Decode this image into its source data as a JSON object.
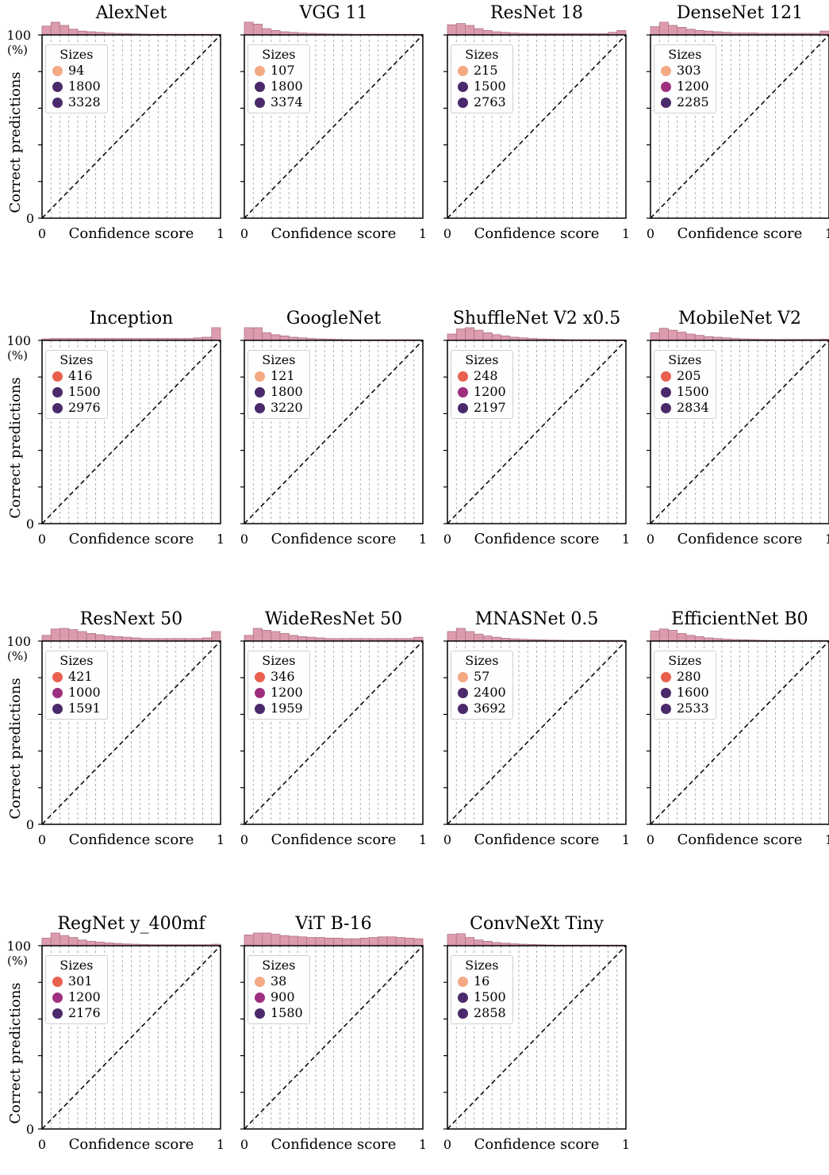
{
  "figure": {
    "shared_xlabel": "Confidence score",
    "shared_ylabel": "Correct predictions",
    "y_top_label": "100",
    "y_unit_label": "(%)",
    "y_zero_label": "0",
    "x_tick_left": "0",
    "x_tick_right": "1",
    "legend_title": "Sizes",
    "colors": {
      "light": "#f3a983",
      "medium": "#e9604f",
      "magenta": "#9e2f7f",
      "dark": "#4a2a6a",
      "errorbar": "#d62a4e",
      "histogram": "#dc9cae",
      "line": "#000000"
    }
  },
  "chart_data": [
    {
      "type": "line",
      "title": "AlexNet",
      "legend": [
        {
          "label": "94",
          "color": "#f3a983"
        },
        {
          "label": "1800",
          "color": "#4a2a6a"
        },
        {
          "label": "3328",
          "color": "#4a2a6a"
        }
      ],
      "xlim": [
        0,
        1
      ],
      "ylim": [
        0,
        100
      ],
      "xlabel": "Confidence score",
      "ylabel": "Correct predictions",
      "histogram": [
        0.7,
        1.0,
        0.75,
        0.45,
        0.3,
        0.25,
        0.2,
        0.15,
        0.12,
        0.1,
        0.08,
        0.06,
        0.05,
        0.05,
        0.05,
        0.05,
        0.05,
        0.05,
        0.05,
        0.05
      ]
    },
    {
      "type": "line",
      "title": "VGG 11",
      "legend": [
        {
          "label": "107",
          "color": "#f3a983"
        },
        {
          "label": "1800",
          "color": "#4a2a6a"
        },
        {
          "label": "3374",
          "color": "#4a2a6a"
        }
      ],
      "xlim": [
        0,
        1
      ],
      "ylim": [
        0,
        100
      ],
      "xlabel": "Confidence score",
      "ylabel": "Correct predictions",
      "histogram": [
        1.0,
        0.85,
        0.5,
        0.35,
        0.25,
        0.2,
        0.15,
        0.12,
        0.1,
        0.08,
        0.07,
        0.06,
        0.05,
        0.05,
        0.05,
        0.05,
        0.05,
        0.05,
        0.05,
        0.05
      ]
    },
    {
      "type": "line",
      "title": "ResNet 18",
      "legend": [
        {
          "label": "215",
          "color": "#f3a983"
        },
        {
          "label": "1500",
          "color": "#4a2a6a"
        },
        {
          "label": "2763",
          "color": "#4a2a6a"
        }
      ],
      "xlim": [
        0,
        1
      ],
      "ylim": [
        0,
        100
      ],
      "xlabel": "Confidence score",
      "ylabel": "Correct predictions",
      "histogram": [
        0.8,
        0.9,
        0.75,
        0.5,
        0.35,
        0.25,
        0.2,
        0.15,
        0.12,
        0.1,
        0.1,
        0.1,
        0.1,
        0.1,
        0.1,
        0.1,
        0.1,
        0.1,
        0.2,
        0.35
      ]
    },
    {
      "type": "line",
      "title": "DenseNet 121",
      "legend": [
        {
          "label": "303",
          "color": "#f3a983"
        },
        {
          "label": "1200",
          "color": "#9e2f7f"
        },
        {
          "label": "2285",
          "color": "#4a2a6a"
        }
      ],
      "xlim": [
        0,
        1
      ],
      "ylim": [
        0,
        100
      ],
      "xlabel": "Confidence score",
      "ylabel": "Correct predictions",
      "histogram": [
        0.65,
        1.0,
        0.75,
        0.6,
        0.45,
        0.35,
        0.3,
        0.25,
        0.2,
        0.15,
        0.15,
        0.15,
        0.12,
        0.12,
        0.12,
        0.12,
        0.12,
        0.12,
        0.12,
        0.3
      ]
    },
    {
      "type": "line",
      "title": "Inception",
      "legend": [
        {
          "label": "416",
          "color": "#e9604f"
        },
        {
          "label": "1500",
          "color": "#4a2a6a"
        },
        {
          "label": "2976",
          "color": "#4a2a6a"
        }
      ],
      "xlim": [
        0,
        1
      ],
      "ylim": [
        0,
        100
      ],
      "xlabel": "Confidence score",
      "ylabel": "Correct predictions",
      "histogram": [
        0.12,
        0.15,
        0.15,
        0.15,
        0.15,
        0.15,
        0.15,
        0.15,
        0.15,
        0.15,
        0.15,
        0.15,
        0.15,
        0.15,
        0.15,
        0.15,
        0.15,
        0.2,
        0.25,
        1.0
      ]
    },
    {
      "type": "line",
      "title": "GoogleNet",
      "legend": [
        {
          "label": "121",
          "color": "#f3a983"
        },
        {
          "label": "1800",
          "color": "#4a2a6a"
        },
        {
          "label": "3220",
          "color": "#4a2a6a"
        }
      ],
      "xlim": [
        0,
        1
      ],
      "ylim": [
        0,
        100
      ],
      "xlabel": "Confidence score",
      "ylabel": "Correct predictions",
      "histogram": [
        1.0,
        1.0,
        0.6,
        0.45,
        0.35,
        0.25,
        0.2,
        0.15,
        0.12,
        0.1,
        0.08,
        0.06,
        0.05,
        0.05,
        0.05,
        0.05,
        0.05,
        0.05,
        0.05,
        0.05
      ]
    },
    {
      "type": "line",
      "title": "ShuffleNet V2 x0.5",
      "legend": [
        {
          "label": "248",
          "color": "#e9604f"
        },
        {
          "label": "1200",
          "color": "#9e2f7f"
        },
        {
          "label": "2197",
          "color": "#4a2a6a"
        }
      ],
      "xlim": [
        0,
        1
      ],
      "ylim": [
        0,
        100
      ],
      "xlabel": "Confidence score",
      "ylabel": "Correct predictions",
      "histogram": [
        0.5,
        0.9,
        1.0,
        0.8,
        0.6,
        0.45,
        0.35,
        0.25,
        0.2,
        0.15,
        0.12,
        0.1,
        0.08,
        0.06,
        0.05,
        0.05,
        0.05,
        0.05,
        0.05,
        0.05
      ]
    },
    {
      "type": "line",
      "title": "MobileNet V2",
      "legend": [
        {
          "label": "205",
          "color": "#e9604f"
        },
        {
          "label": "1500",
          "color": "#4a2a6a"
        },
        {
          "label": "2834",
          "color": "#4a2a6a"
        }
      ],
      "xlim": [
        0,
        1
      ],
      "ylim": [
        0,
        100
      ],
      "xlabel": "Confidence score",
      "ylabel": "Correct predictions",
      "histogram": [
        0.6,
        0.95,
        0.8,
        0.65,
        0.5,
        0.4,
        0.3,
        0.25,
        0.2,
        0.15,
        0.12,
        0.1,
        0.08,
        0.08,
        0.08,
        0.08,
        0.08,
        0.08,
        0.08,
        0.1
      ]
    },
    {
      "type": "line",
      "title": "ResNext 50",
      "legend": [
        {
          "label": "421",
          "color": "#e9604f"
        },
        {
          "label": "1000",
          "color": "#9e2f7f"
        },
        {
          "label": "1591",
          "color": "#4a2a6a"
        }
      ],
      "xlim": [
        0,
        1
      ],
      "ylim": [
        0,
        100
      ],
      "xlabel": "Confidence score",
      "ylabel": "Correct predictions",
      "histogram": [
        0.45,
        0.95,
        1.0,
        0.9,
        0.75,
        0.6,
        0.5,
        0.4,
        0.35,
        0.3,
        0.25,
        0.2,
        0.2,
        0.2,
        0.2,
        0.2,
        0.2,
        0.2,
        0.25,
        0.75
      ]
    },
    {
      "type": "line",
      "title": "WideResNet 50",
      "legend": [
        {
          "label": "346",
          "color": "#e9604f"
        },
        {
          "label": "1200",
          "color": "#9e2f7f"
        },
        {
          "label": "1959",
          "color": "#4a2a6a"
        }
      ],
      "xlim": [
        0,
        1
      ],
      "ylim": [
        0,
        100
      ],
      "xlabel": "Confidence score",
      "ylabel": "Correct predictions",
      "histogram": [
        0.45,
        1.0,
        0.85,
        0.75,
        0.6,
        0.45,
        0.35,
        0.3,
        0.25,
        0.2,
        0.2,
        0.2,
        0.2,
        0.2,
        0.2,
        0.2,
        0.2,
        0.2,
        0.2,
        0.3
      ]
    },
    {
      "type": "line",
      "title": "MNASNet 0.5",
      "legend": [
        {
          "label": "57",
          "color": "#f3a983"
        },
        {
          "label": "2400",
          "color": "#4a2a6a"
        },
        {
          "label": "3692",
          "color": "#4a2a6a"
        }
      ],
      "xlim": [
        0,
        1
      ],
      "ylim": [
        0,
        100
      ],
      "xlabel": "Confidence score",
      "ylabel": "Correct predictions",
      "histogram": [
        0.75,
        1.0,
        0.75,
        0.55,
        0.4,
        0.3,
        0.22,
        0.18,
        0.14,
        0.12,
        0.1,
        0.08,
        0.07,
        0.06,
        0.06,
        0.06,
        0.06,
        0.06,
        0.06,
        0.06
      ]
    },
    {
      "type": "line",
      "title": "EfficientNet B0",
      "legend": [
        {
          "label": "280",
          "color": "#e9604f"
        },
        {
          "label": "1600",
          "color": "#4a2a6a"
        },
        {
          "label": "2533",
          "color": "#4a2a6a"
        }
      ],
      "xlim": [
        0,
        1
      ],
      "ylim": [
        0,
        100
      ],
      "xlabel": "Confidence score",
      "ylabel": "Correct predictions",
      "histogram": [
        0.8,
        0.95,
        0.85,
        0.6,
        0.45,
        0.35,
        0.25,
        0.2,
        0.15,
        0.12,
        0.1,
        0.08,
        0.06,
        0.05,
        0.05,
        0.05,
        0.05,
        0.05,
        0.05,
        0.05
      ]
    },
    {
      "type": "line",
      "title": "RegNet y_400mf",
      "legend": [
        {
          "label": "301",
          "color": "#e9604f"
        },
        {
          "label": "1200",
          "color": "#9e2f7f"
        },
        {
          "label": "2176",
          "color": "#4a2a6a"
        }
      ],
      "xlim": [
        0,
        1
      ],
      "ylim": [
        0,
        100
      ],
      "xlabel": "Confidence score",
      "ylabel": "Correct predictions",
      "histogram": [
        0.6,
        1.0,
        0.8,
        0.65,
        0.45,
        0.35,
        0.28,
        0.22,
        0.18,
        0.14,
        0.12,
        0.1,
        0.08,
        0.08,
        0.08,
        0.08,
        0.08,
        0.08,
        0.08,
        0.12
      ]
    },
    {
      "type": "line",
      "title": "ViT B-16",
      "legend": [
        {
          "label": "38",
          "color": "#f3a983"
        },
        {
          "label": "900",
          "color": "#9e2f7f"
        },
        {
          "label": "1580",
          "color": "#4a2a6a"
        }
      ],
      "xlim": [
        0,
        1
      ],
      "ylim": [
        0,
        100
      ],
      "xlabel": "Confidence score",
      "ylabel": "Correct predictions",
      "histogram": [
        0.85,
        1.0,
        1.0,
        0.9,
        0.8,
        0.75,
        0.7,
        0.65,
        0.65,
        0.6,
        0.6,
        0.55,
        0.55,
        0.6,
        0.65,
        0.7,
        0.7,
        0.65,
        0.6,
        0.55
      ]
    },
    {
      "type": "line",
      "title": "ConvNeXt Tiny",
      "legend": [
        {
          "label": "16",
          "color": "#f3a983"
        },
        {
          "label": "1500",
          "color": "#4a2a6a"
        },
        {
          "label": "2858",
          "color": "#4a2a6a"
        }
      ],
      "xlim": [
        0,
        1
      ],
      "ylim": [
        0,
        100
      ],
      "xlabel": "Confidence score",
      "ylabel": "Correct predictions",
      "histogram": [
        0.9,
        0.95,
        0.65,
        0.45,
        0.35,
        0.25,
        0.2,
        0.15,
        0.12,
        0.1,
        0.08,
        0.06,
        0.05,
        0.05,
        0.05,
        0.05,
        0.05,
        0.05,
        0.05,
        0.05
      ]
    }
  ]
}
